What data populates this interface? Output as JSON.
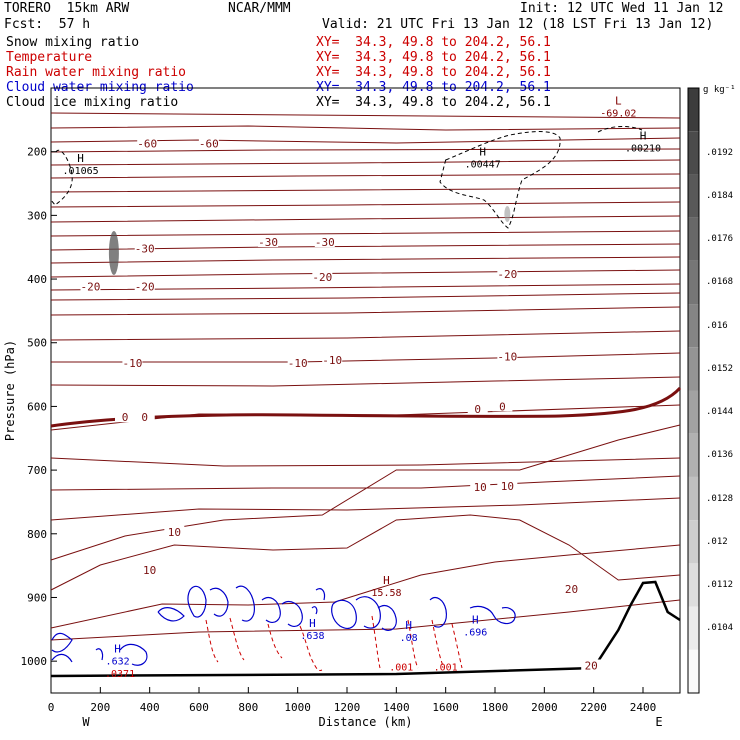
{
  "header": {
    "model": "TORERO  15km ARW",
    "org": "NCAR/MMM",
    "init": "Init: 12 UTC Wed 11 Jan 12",
    "fcst": "Fcst:  57 h",
    "valid": "Valid: 21 UTC Fri 13 Jan 12 (18 LST Fri 13 Jan 12)"
  },
  "legend": [
    {
      "name": "Snow mixing ratio",
      "xy": "XY=  34.3, 49.8 to 204.2, 56.1",
      "color": "#000000",
      "xy_color": "#cc0000"
    },
    {
      "name": "Temperature",
      "xy": "XY=  34.3, 49.8 to 204.2, 56.1",
      "color": "#cc0000",
      "xy_color": "#cc0000"
    },
    {
      "name": "Rain water mixing ratio",
      "xy": "XY=  34.3, 49.8 to 204.2, 56.1",
      "color": "#cc0000",
      "xy_color": "#cc0000"
    },
    {
      "name": "Cloud water mixing ratio",
      "xy": "XY=  34.3, 49.8 to 204.2, 56.1",
      "color": "#0000cc",
      "xy_color": "#0000cc"
    },
    {
      "name": "Cloud ice mixing ratio",
      "xy": "XY=  34.3, 49.8 to 204.2, 56.1",
      "color": "#000000",
      "xy_color": "#000000"
    }
  ],
  "colorbar": {
    "unit": "g kg⁻¹",
    "labels": [
      ".0192",
      ".0184",
      ".0176",
      ".0168",
      ".016",
      ".0152",
      ".0144",
      ".0136",
      ".0128",
      ".012",
      ".0112",
      ".0104"
    ]
  },
  "chart_data": {
    "type": "contour",
    "xlabel": "Distance (km)",
    "ylabel": "Pressure (hPa)",
    "xlim": [
      0,
      2550
    ],
    "ylim": [
      1050,
      100
    ],
    "x_ticks": [
      0,
      200,
      400,
      600,
      800,
      1000,
      1200,
      1400,
      1600,
      1800,
      2000,
      2200,
      2400
    ],
    "y_ticks": [
      200,
      300,
      400,
      500,
      600,
      700,
      800,
      900,
      1000
    ],
    "x_end_labels": {
      "left": "W",
      "right": "E"
    },
    "temperature_labels": [
      {
        "text": "-60",
        "x": 390,
        "p": 190
      },
      {
        "text": "-60",
        "x": 640,
        "p": 190
      },
      {
        "text": "-30",
        "x": 380,
        "p": 355
      },
      {
        "text": "-30",
        "x": 880,
        "p": 345
      },
      {
        "text": "-30",
        "x": 1110,
        "p": 345
      },
      {
        "text": "-20",
        "x": 160,
        "p": 415
      },
      {
        "text": "-20",
        "x": 380,
        "p": 415
      },
      {
        "text": "-20",
        "x": 1100,
        "p": 400
      },
      {
        "text": "-20",
        "x": 1850,
        "p": 395
      },
      {
        "text": "-10",
        "x": 330,
        "p": 535
      },
      {
        "text": "-10",
        "x": 1000,
        "p": 535
      },
      {
        "text": "-10",
        "x": 1140,
        "p": 530
      },
      {
        "text": "-10",
        "x": 1850,
        "p": 525
      },
      {
        "text": "0",
        "x": 300,
        "p": 620
      },
      {
        "text": "0",
        "x": 380,
        "p": 620
      },
      {
        "text": "0",
        "x": 1730,
        "p": 607
      },
      {
        "text": "0",
        "x": 1830,
        "p": 603
      },
      {
        "text": "10",
        "x": 500,
        "p": 800
      },
      {
        "text": "10",
        "x": 400,
        "p": 860
      },
      {
        "text": "10",
        "x": 1740,
        "p": 730
      },
      {
        "text": "10",
        "x": 1850,
        "p": 728
      },
      {
        "text": "20",
        "x": 2110,
        "p": 890
      },
      {
        "text": "20",
        "x": 2190,
        "p": 1010
      }
    ],
    "extrema_labels": [
      {
        "kind": "H",
        "text": ".01065",
        "x": 120,
        "p": 235,
        "color": "#000000"
      },
      {
        "kind": "H",
        "text": ".00447",
        "x": 1750,
        "p": 225,
        "color": "#000000"
      },
      {
        "kind": "H",
        "text": ".00210",
        "x": 2400,
        "p": 200,
        "color": "#000000"
      },
      {
        "kind": "L",
        "text": "-69.02",
        "x": 2300,
        "p": 145,
        "color": "#800000"
      },
      {
        "kind": "H",
        "text": "15.58",
        "x": 1360,
        "p": 898,
        "color": "#800000"
      },
      {
        "kind": "H",
        "text": ".632",
        "x": 270,
        "p": 1005,
        "color": "#0000cc"
      },
      {
        "kind": "H",
        "text": ".696",
        "x": 1720,
        "p": 960,
        "color": "#0000cc"
      },
      {
        "kind": "H",
        "text": ".638",
        "x": 1060,
        "p": 965,
        "color": "#0000cc"
      },
      {
        "kind": "H",
        "text": ".08",
        "x": 1450,
        "p": 968,
        "color": "#0000cc"
      },
      {
        "kind": "",
        "text": ".001",
        "x": 1420,
        "p": 1015,
        "color": "#cc0000"
      },
      {
        "kind": "",
        "text": ".001",
        "x": 1600,
        "p": 1015,
        "color": "#cc0000"
      },
      {
        "kind": "",
        "text": ".0371",
        "x": 280,
        "p": 1025,
        "color": "#cc0000"
      }
    ],
    "grid": false,
    "legend_placement": "top-left"
  }
}
